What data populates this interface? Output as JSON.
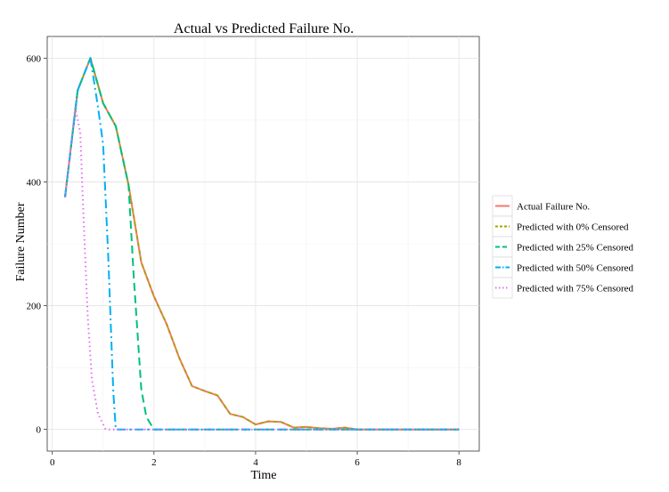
{
  "chart_data": {
    "type": "line",
    "title": "Actual vs Predicted Failure No.",
    "xlabel": "Time",
    "ylabel": "Failure Number",
    "xlim": [
      -0.1,
      8.4
    ],
    "ylim": [
      -35,
      635
    ],
    "x_ticks": [
      0,
      2,
      4,
      6,
      8
    ],
    "y_ticks": [
      0,
      200,
      400,
      600
    ],
    "x_tick_labels": [
      "0",
      "2",
      "4",
      "6",
      "8"
    ],
    "y_tick_labels": [
      "0",
      "200",
      "400",
      "600"
    ],
    "grid": true,
    "legend_position": "right",
    "series": [
      {
        "name": "Actual Failure No.",
        "color": "#F8766D",
        "dash": "solid",
        "x": [
          0.25,
          0.5,
          0.75,
          1.0,
          1.25,
          1.5,
          1.75,
          2.0,
          2.25,
          2.5,
          2.75,
          3.0,
          3.25,
          3.5,
          3.75,
          4.0,
          4.25,
          4.5,
          4.75,
          5.0,
          5.25,
          5.5,
          5.75,
          6.0,
          6.5,
          7.0,
          7.5,
          8.0
        ],
        "values": [
          375,
          548,
          600,
          527,
          490,
          395,
          270,
          215,
          170,
          115,
          70,
          62,
          55,
          25,
          20,
          8,
          13,
          12,
          3,
          4,
          2,
          1,
          3,
          0,
          0,
          0,
          0,
          0
        ]
      },
      {
        "name": "Predicted with 0% Censored",
        "color": "#A3A500",
        "dash": "dashed",
        "x": [
          0.25,
          0.5,
          0.75,
          1.0,
          1.25,
          1.5,
          1.75,
          2.0,
          2.25,
          2.5,
          2.75,
          3.0,
          3.25,
          3.5,
          3.75,
          4.0,
          4.25,
          4.5,
          4.75,
          5.0,
          5.25,
          5.5,
          5.75,
          6.0,
          6.5,
          7.0,
          7.5,
          8.0
        ],
        "values": [
          375,
          548,
          600,
          527,
          490,
          395,
          270,
          215,
          170,
          115,
          70,
          62,
          55,
          25,
          20,
          8,
          13,
          12,
          3,
          4,
          2,
          1,
          3,
          0,
          0,
          0,
          0,
          0
        ]
      },
      {
        "name": "Predicted with 25% Censored",
        "color": "#00BF7D",
        "dash": "longdash",
        "x": [
          0.25,
          0.5,
          0.75,
          1.0,
          1.25,
          1.5,
          1.6,
          1.75,
          1.85,
          2.0,
          8.0
        ],
        "values": [
          375,
          548,
          600,
          527,
          490,
          395,
          250,
          65,
          20,
          0,
          0
        ]
      },
      {
        "name": "Predicted with 50% Censored",
        "color": "#00B0F6",
        "dash": "dashdot",
        "x": [
          0.25,
          0.5,
          0.75,
          0.9,
          1.0,
          1.1,
          1.2,
          1.25,
          8.0
        ],
        "values": [
          375,
          548,
          600,
          520,
          460,
          280,
          60,
          0,
          0
        ]
      },
      {
        "name": "Predicted with 75% Censored",
        "color": "#E76BF3",
        "dash": "dotted",
        "x": [
          0.25,
          0.45,
          0.55,
          0.62,
          0.7,
          0.78,
          0.9,
          1.05,
          8.0
        ],
        "values": [
          375,
          520,
          480,
          330,
          180,
          80,
          25,
          0,
          0
        ]
      }
    ]
  }
}
